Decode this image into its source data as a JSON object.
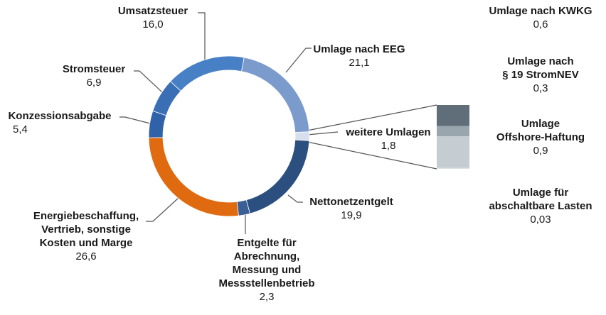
{
  "chart_data": {
    "type": "pie",
    "variant": "donut",
    "slices": [
      {
        "label": "Umlage nach EEG",
        "value": 21.1,
        "display": "21,1",
        "color": "#7b9bcd"
      },
      {
        "label": "weitere Umlagen",
        "value": 1.8,
        "display": "1,8",
        "color": "#d7dfee"
      },
      {
        "label": "Nettonetzentgelt",
        "value": 19.9,
        "display": "19,9",
        "color": "#2b4f7e"
      },
      {
        "label": "Entgelte für Abrechnung, Messung und Messstellenbetrieb",
        "value": 2.3,
        "display": "2,3",
        "color": "#3a5f96"
      },
      {
        "label": "Energiebeschaffung, Vertrieb, sonstige Kosten und Marge",
        "value": 26.6,
        "display": "26,6",
        "color": "#e06a0f"
      },
      {
        "label": "Konzessionsabgabe",
        "value": 5.4,
        "display": "5,4",
        "color": "#2f62a8"
      },
      {
        "label": "Stromsteuer",
        "value": 6.9,
        "display": "6,9",
        "color": "#3a6fb6"
      },
      {
        "label": "Umsatzsteuer",
        "value": 16.0,
        "display": "16,0",
        "color": "#4880c6"
      }
    ],
    "breakdown": {
      "parent": "weitere Umlagen",
      "items": [
        {
          "label": "Umlage nach KWKG",
          "value": 0.6,
          "display": "0,6",
          "color": "#5f6e79"
        },
        {
          "label": "Umlage nach § 19 StromNEV",
          "value": 0.3,
          "display": "0,3",
          "color": "#9aa6ae"
        },
        {
          "label": "Umlage Offshore-Haftung",
          "value": 0.9,
          "display": "0,9",
          "color": "#c6cdd2"
        },
        {
          "label": "Umlage für abschaltbare Lasten",
          "value": 0.03,
          "display": "0,03",
          "color": "#dde2e5"
        }
      ]
    }
  },
  "labels": {
    "umsatzsteuer": {
      "name": "Umsatzsteuer",
      "value": "16,0"
    },
    "eeg": {
      "name": "Umlage nach EEG",
      "value": "21,1"
    },
    "stromsteuer": {
      "name": "Stromsteuer",
      "value": "6,9"
    },
    "konzession": {
      "name": "Konzessionsabgabe",
      "value": "5,4"
    },
    "weitere": {
      "name": "weitere Umlagen",
      "value": "1,8"
    },
    "netto": {
      "name": "Nettonetzentgelt",
      "value": "19,9"
    },
    "energie": {
      "line1": "Energiebeschaffung,",
      "line2": "Vertrieb, sonstige",
      "line3": "Kosten und Marge",
      "value": "26,6"
    },
    "entgelte": {
      "line1": "Entgelte für",
      "line2": "Abrechnung,",
      "line3": "Messung und",
      "line4": "Messstellenbetrieb",
      "value": "2,3"
    },
    "kwkg": {
      "name": "Umlage nach KWKG",
      "value": "0,6"
    },
    "stromnev": {
      "line1": "Umlage nach",
      "line2": "§ 19 StromNEV",
      "value": "0,3"
    },
    "offshore": {
      "line1": "Umlage",
      "line2": "Offshore-Haftung",
      "value": "0,9"
    },
    "abschaltbar": {
      "line1": "Umlage für",
      "line2": "abschaltbare Lasten",
      "value": "0,03"
    }
  }
}
